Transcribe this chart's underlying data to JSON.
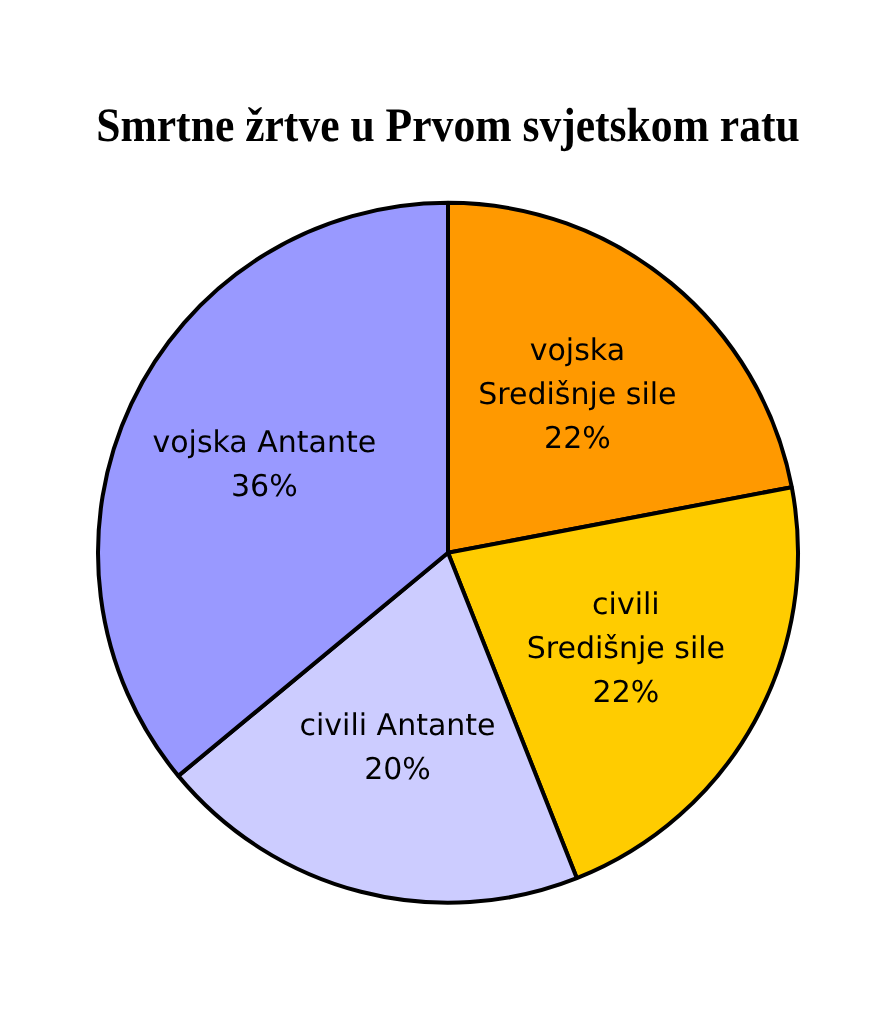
{
  "chart_data": {
    "type": "pie",
    "title": "Smrtne žrtve u Prvom svjetskom ratu",
    "categories": [
      "vojska Središnje sile",
      "civili Središnje sile",
      "civili Antante",
      "vojska Antante"
    ],
    "values": [
      22,
      22,
      20,
      36
    ],
    "colors": [
      "#ff9900",
      "#ffcc00",
      "#ccccff",
      "#9999ff"
    ],
    "value_labels": [
      "22%",
      "22%",
      "20%",
      "36%"
    ],
    "legend": false
  }
}
